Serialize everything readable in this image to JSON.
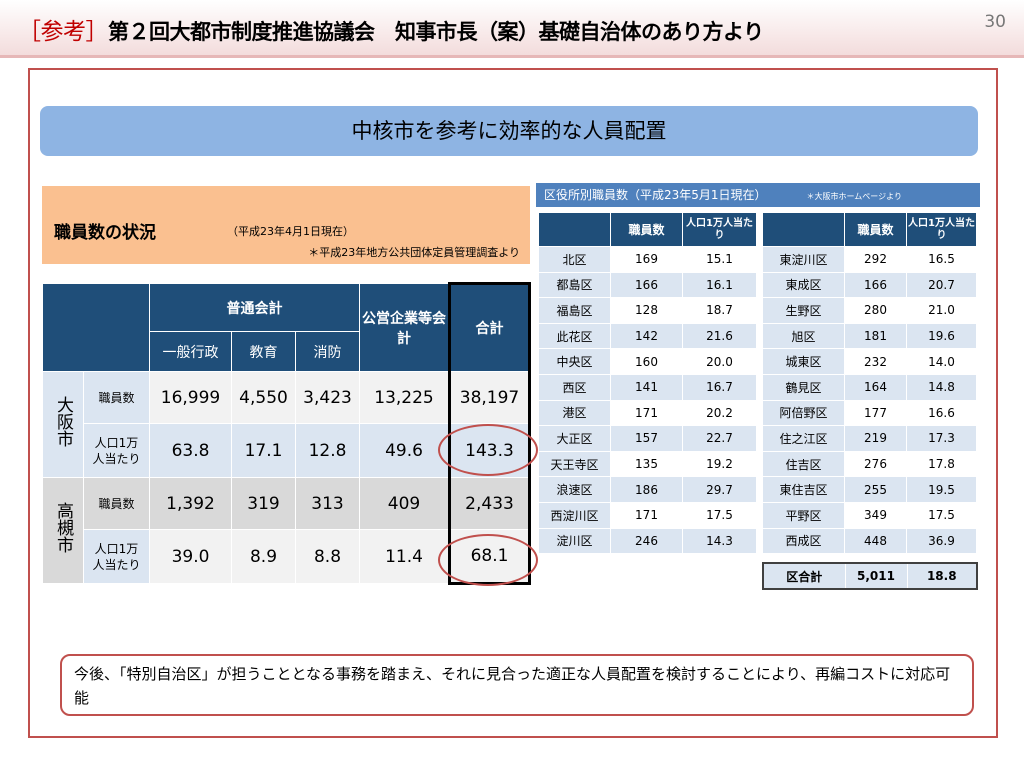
{
  "header": {
    "tag": "［参考］",
    "title": "第２回大都市制度推進協議会　知事市長（案）基礎自治体のあり方より",
    "page_number": "30"
  },
  "banner": "中核市を参考に効率的な人員配置",
  "staff_status": {
    "title": "職員数の状況",
    "date": "（平成23年4月1日現在）",
    "source": "＊平成23年地方公共団体定員管理調査より"
  },
  "main_table": {
    "group_general": "普通会計",
    "group_enterprise": "公営企業等会計",
    "group_total": "合計",
    "sub_admin": "一般行政",
    "sub_edu": "教育",
    "sub_fire": "消防",
    "rows": [
      {
        "city": "大阪市",
        "label_staff": "職員数",
        "label_per": "人口1万人当たり",
        "staff": [
          "16,999",
          "4,550",
          "3,423",
          "13,225",
          "38,197"
        ],
        "per": [
          "63.8",
          "17.1",
          "12.8",
          "49.6",
          "143.3"
        ]
      },
      {
        "city": "高槻市",
        "label_staff": "職員数",
        "label_per": "人口1万人当たり",
        "staff": [
          "1,392",
          "319",
          "313",
          "409",
          "2,433"
        ],
        "per": [
          "39.0",
          "8.9",
          "8.8",
          "11.4",
          "68.1"
        ]
      }
    ]
  },
  "ward": {
    "title": "区役所別職員数（平成23年5月1日現在）",
    "note": "＊大阪市ホームページより",
    "col_staff": "職員数",
    "col_per": "人口1万人当たり",
    "left": [
      [
        "北区",
        "169",
        "15.1"
      ],
      [
        "都島区",
        "166",
        "16.1"
      ],
      [
        "福島区",
        "128",
        "18.7"
      ],
      [
        "此花区",
        "142",
        "21.6"
      ],
      [
        "中央区",
        "160",
        "20.0"
      ],
      [
        "西区",
        "141",
        "16.7"
      ],
      [
        "港区",
        "171",
        "20.2"
      ],
      [
        "大正区",
        "157",
        "22.7"
      ],
      [
        "天王寺区",
        "135",
        "19.2"
      ],
      [
        "浪速区",
        "186",
        "29.7"
      ],
      [
        "西淀川区",
        "171",
        "17.5"
      ],
      [
        "淀川区",
        "246",
        "14.3"
      ]
    ],
    "right": [
      [
        "東淀川区",
        "292",
        "16.5"
      ],
      [
        "東成区",
        "166",
        "20.7"
      ],
      [
        "生野区",
        "280",
        "21.0"
      ],
      [
        "旭区",
        "181",
        "19.6"
      ],
      [
        "城東区",
        "232",
        "14.0"
      ],
      [
        "鶴見区",
        "164",
        "14.8"
      ],
      [
        "阿倍野区",
        "177",
        "16.6"
      ],
      [
        "住之江区",
        "219",
        "17.3"
      ],
      [
        "住吉区",
        "276",
        "17.8"
      ],
      [
        "東住吉区",
        "255",
        "19.5"
      ],
      [
        "平野区",
        "349",
        "17.5"
      ],
      [
        "西成区",
        "448",
        "36.9"
      ]
    ],
    "total": {
      "label": "区合計",
      "staff": "5,011",
      "per": "18.8"
    }
  },
  "bottom_note": "今後、「特別自治区」が担うこととなる事務を踏まえ、それに見合った適正な人員配置を検討することにより、再編コストに対応可能"
}
